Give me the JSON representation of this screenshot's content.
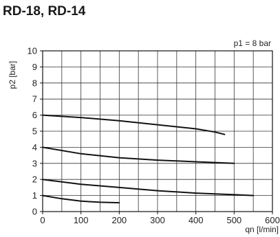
{
  "page": {
    "title": "RD-18, RD-14"
  },
  "chart_data": {
    "type": "line",
    "annotation": "p1 = 8 bar",
    "xlabel": "qn [l/min]",
    "ylabel": "p2 [bar]",
    "xlim": [
      0,
      600
    ],
    "ylim": [
      0,
      10
    ],
    "x_ticks": [
      "0",
      "100",
      "200",
      "300",
      "400",
      "500",
      "600"
    ],
    "y_ticks": [
      "0",
      "1",
      "2",
      "3",
      "4",
      "5",
      "6",
      "7",
      "8",
      "9",
      "10"
    ],
    "grid": true,
    "line_color": "#111111",
    "series": [
      {
        "points": [
          [
            0,
            6.0
          ],
          [
            100,
            5.85
          ],
          [
            200,
            5.65
          ],
          [
            300,
            5.4
          ],
          [
            400,
            5.15
          ],
          [
            450,
            4.95
          ],
          [
            475,
            4.8
          ]
        ]
      },
      {
        "points": [
          [
            0,
            4.0
          ],
          [
            100,
            3.6
          ],
          [
            200,
            3.35
          ],
          [
            300,
            3.2
          ],
          [
            400,
            3.1
          ],
          [
            500,
            3.0
          ]
        ]
      },
      {
        "points": [
          [
            0,
            2.0
          ],
          [
            100,
            1.7
          ],
          [
            200,
            1.5
          ],
          [
            300,
            1.3
          ],
          [
            400,
            1.15
          ],
          [
            500,
            1.05
          ],
          [
            550,
            1.0
          ]
        ]
      },
      {
        "points": [
          [
            0,
            1.0
          ],
          [
            50,
            0.8
          ],
          [
            100,
            0.65
          ],
          [
            150,
            0.58
          ],
          [
            200,
            0.55
          ]
        ]
      }
    ]
  }
}
